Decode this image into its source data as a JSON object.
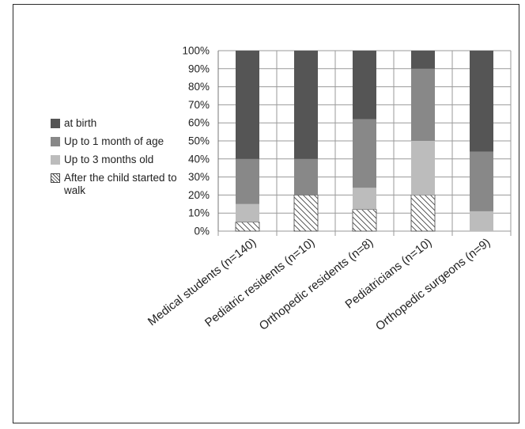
{
  "chart_data": {
    "type": "bar",
    "stacked": true,
    "orientation": "vertical",
    "categories": [
      "Medical students (n=140)",
      "Pediatric residents (n=10)",
      "Orthopedic residents (n=8)",
      "Pediatricians (n=10)",
      "Orthopedic surgeons (n=9)"
    ],
    "series": [
      {
        "name": "After the child started to walk",
        "values": [
          5,
          20,
          12,
          20,
          0
        ],
        "color": "#ffffff",
        "pattern": "hatch"
      },
      {
        "name": "Up to 3 months old",
        "values": [
          10,
          0,
          12,
          30,
          11
        ],
        "color": "#bcbcbc"
      },
      {
        "name": "Up to 1 month of age",
        "values": [
          25,
          20,
          38,
          40,
          33
        ],
        "color": "#888888"
      },
      {
        "name": "at birth",
        "values": [
          60,
          60,
          38,
          10,
          56
        ],
        "color": "#555555"
      }
    ],
    "legend_order": [
      "at birth",
      "Up to 1 month of age",
      "Up to 3 months old",
      "After the child started to walk"
    ],
    "yticks": [
      "0%",
      "10%",
      "20%",
      "30%",
      "40%",
      "50%",
      "60%",
      "70%",
      "80%",
      "90%",
      "100%"
    ],
    "ylim": [
      0,
      100
    ],
    "grid": true,
    "legend_position": "left"
  }
}
